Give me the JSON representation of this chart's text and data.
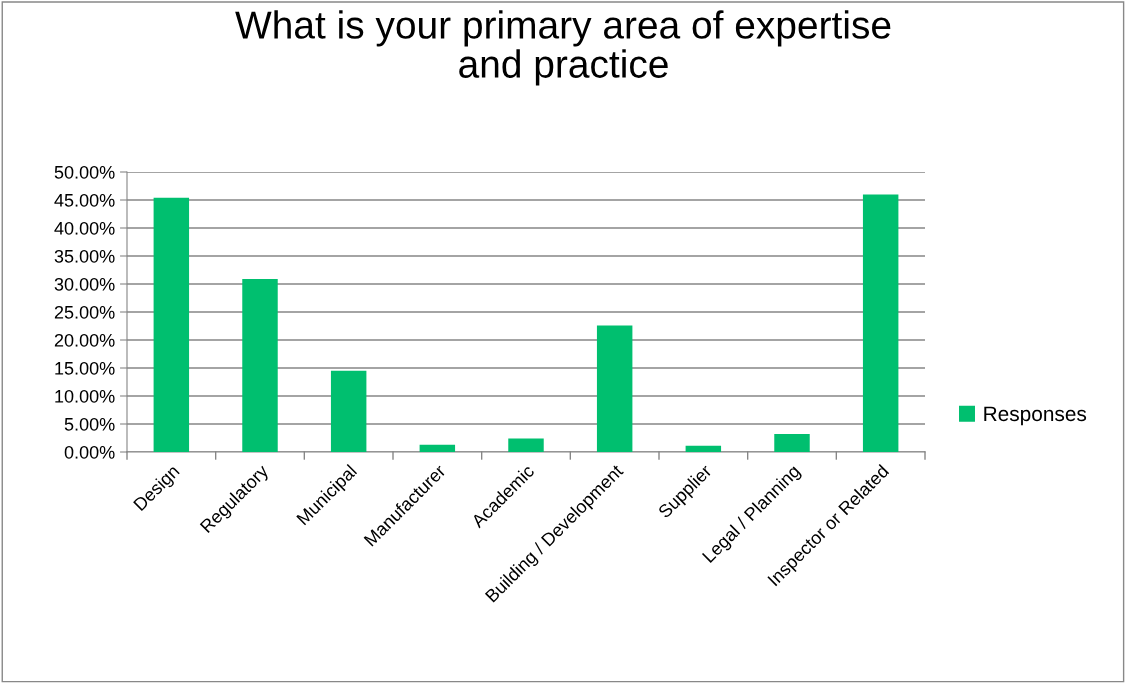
{
  "chart_data": {
    "type": "bar",
    "title": "What is your primary area of expertise\nand practice",
    "categories": [
      "Design",
      "Regulatory",
      "Municipal",
      "Manufacturer",
      "Academic",
      "Building / Development",
      "Supplier",
      "Legal / Planning",
      "Inspector or Related"
    ],
    "series": [
      {
        "name": "Responses",
        "color": "#00bf6f",
        "values": [
          45.4,
          30.9,
          14.5,
          1.3,
          2.4,
          22.6,
          1.1,
          3.2,
          46.0
        ]
      }
    ],
    "ylim": [
      0,
      50
    ],
    "yticks": [
      {
        "value": 0,
        "label": "0.00%"
      },
      {
        "value": 5,
        "label": "5.00%"
      },
      {
        "value": 10,
        "label": "10.00%"
      },
      {
        "value": 15,
        "label": "15.00%"
      },
      {
        "value": 20,
        "label": "20.00%"
      },
      {
        "value": 25,
        "label": "25.00%"
      },
      {
        "value": 30,
        "label": "30.00%"
      },
      {
        "value": 35,
        "label": "35.00%"
      },
      {
        "value": 40,
        "label": "40.00%"
      },
      {
        "value": 45,
        "label": "45.00%"
      },
      {
        "value": 50,
        "label": "50.00%"
      }
    ],
    "grid": "y",
    "legend": "right"
  }
}
